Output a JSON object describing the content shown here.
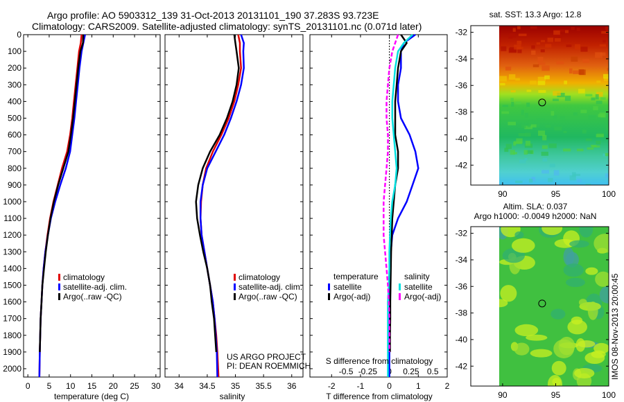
{
  "header": {
    "title_line1": "Argo profile: AO 5903312_139 31-Oct-2013 20131101_190 37.283S 93.723E",
    "title_line2": "Climatology: CARS2009. Satellite-adjusted climatology: synTS_20131101.nc (0.071d later)"
  },
  "colors": {
    "climatology": "#e00000",
    "satellite": "#0000ff",
    "argo": "#000000",
    "sal_satellite": "#00e0e0",
    "sal_argo": "#ff00ff"
  },
  "chart_data": [
    {
      "type": "line",
      "name": "temperature-profile",
      "xlabel": "temperature (deg C)",
      "xlim": [
        -1,
        31
      ],
      "ylim": [
        2050,
        0
      ],
      "xticks": [
        "0",
        "5",
        "10",
        "15",
        "20",
        "25",
        "30"
      ],
      "yticks": [
        "0",
        "100",
        "200",
        "300",
        "400",
        "500",
        "600",
        "700",
        "800",
        "900",
        "1000",
        "1100",
        "1200",
        "1300",
        "1400",
        "1500",
        "1600",
        "1700",
        "1800",
        "1900",
        "2000"
      ],
      "legend": [
        "climatology",
        "satellite-adj. clim.",
        "Argo(..raw -QC)"
      ],
      "series": [
        {
          "name": "climatology",
          "color": "#e00000",
          "x": [
            12.6,
            12.4,
            12.0,
            11.6,
            11.2,
            10.8,
            10.4,
            9.9,
            9.2,
            8.0,
            7.0,
            6.0,
            5.2,
            4.6,
            4.1,
            3.7,
            3.4,
            3.2,
            3.0,
            2.9,
            2.8,
            2.7
          ],
          "y": [
            0,
            50,
            100,
            200,
            300,
            400,
            500,
            600,
            700,
            800,
            900,
            1000,
            1100,
            1200,
            1300,
            1400,
            1500,
            1600,
            1700,
            1800,
            1900,
            2050
          ]
        },
        {
          "name": "satellite-adj. clim.",
          "color": "#0000ff",
          "x": [
            13.4,
            13.0,
            12.6,
            12.1,
            11.7,
            11.3,
            10.9,
            10.4,
            9.9,
            8.9,
            7.6,
            6.4,
            5.4,
            4.7,
            4.1,
            3.7,
            3.4,
            3.2,
            3.0,
            2.9,
            2.8,
            2.7
          ],
          "y": [
            0,
            50,
            100,
            200,
            300,
            400,
            500,
            600,
            700,
            800,
            900,
            1000,
            1100,
            1200,
            1300,
            1400,
            1500,
            1600,
            1700,
            1800,
            1900,
            2050
          ]
        },
        {
          "name": "Argo(..raw -QC)",
          "color": "#000000",
          "x": [
            13.0,
            12.9,
            12.3,
            11.8,
            11.4,
            11.0,
            10.6,
            10.1,
            9.5,
            8.3,
            7.1,
            6.1,
            5.3,
            4.7,
            4.2,
            3.8,
            3.4,
            3.2,
            3.0,
            2.9,
            2.8
          ],
          "y": [
            0,
            50,
            100,
            200,
            300,
            400,
            500,
            600,
            700,
            800,
            900,
            1000,
            1100,
            1200,
            1300,
            1400,
            1500,
            1600,
            1700,
            1800,
            1900
          ]
        }
      ]
    },
    {
      "type": "line",
      "name": "salinity-profile",
      "xlabel": "salinity",
      "xlim": [
        33.75,
        36.2
      ],
      "ylim": [
        2050,
        0
      ],
      "xticks": [
        "34",
        "34.5",
        "35",
        "35.5",
        "36"
      ],
      "legend": [
        "climatology",
        "satellite-adj. clim.",
        "Argo(..raw -QC)"
      ],
      "annotation": [
        "US ARGO PROJECT",
        "PI: DEAN ROEMMICH"
      ],
      "series": [
        {
          "name": "climatology",
          "color": "#e00000",
          "x": [
            35.05,
            35.08,
            35.08,
            35.1,
            35.05,
            34.98,
            34.88,
            34.75,
            34.6,
            34.48,
            34.42,
            34.39,
            34.38,
            34.4,
            34.45,
            34.5,
            34.55,
            34.6,
            34.63,
            34.66,
            34.68,
            34.7
          ],
          "y": [
            0,
            50,
            100,
            200,
            300,
            400,
            500,
            600,
            700,
            800,
            900,
            1000,
            1100,
            1200,
            1300,
            1400,
            1500,
            1600,
            1700,
            1800,
            1900,
            2050
          ]
        },
        {
          "name": "satellite-adj. clim.",
          "color": "#0000ff",
          "x": [
            35.1,
            35.15,
            35.14,
            35.15,
            35.1,
            35.02,
            34.92,
            34.8,
            34.65,
            34.5,
            34.42,
            34.38,
            34.38,
            34.4,
            34.45,
            34.5,
            34.55,
            34.6,
            34.63,
            34.65,
            34.67,
            34.68
          ],
          "y": [
            0,
            50,
            100,
            200,
            300,
            400,
            500,
            600,
            700,
            800,
            900,
            1000,
            1100,
            1200,
            1300,
            1400,
            1500,
            1600,
            1700,
            1800,
            1900,
            2050
          ]
        },
        {
          "name": "Argo(..raw -QC)",
          "color": "#000000",
          "x": [
            34.98,
            35.0,
            35.02,
            35.06,
            35.02,
            34.95,
            34.85,
            34.72,
            34.55,
            34.42,
            34.34,
            34.3,
            34.32,
            34.37,
            34.43,
            34.5,
            34.55,
            34.58,
            34.62,
            34.64,
            34.66
          ],
          "y": [
            0,
            50,
            100,
            200,
            300,
            400,
            500,
            600,
            700,
            800,
            900,
            1000,
            1100,
            1200,
            1300,
            1400,
            1500,
            1600,
            1700,
            1800,
            1900
          ]
        }
      ]
    },
    {
      "type": "line",
      "name": "difference-profile",
      "xlabel": "T difference from climatology",
      "xlabel_top": "S difference from climatology",
      "xlim": [
        -2.75,
        2.0
      ],
      "ylim": [
        2050,
        0
      ],
      "xticks": [
        "-2",
        "-1",
        "0",
        "1",
        "2"
      ],
      "xticks_s": [
        "-0.5",
        "-0.25",
        "0",
        "0.25",
        "0.5"
      ],
      "legend_temperature": {
        "heading": "temperature",
        "items": [
          "satellite",
          "Argo(-adj)"
        ]
      },
      "legend_salinity": {
        "heading": "salinity",
        "items": [
          "satellite",
          "Argo(-adj)"
        ]
      },
      "series": [
        {
          "name": "temperature satellite",
          "color": "#0000ff",
          "x": [
            0.9,
            0.5,
            0.4,
            0.4,
            0.3,
            0.3,
            0.4,
            0.7,
            0.9,
            1.0,
            0.8,
            0.6,
            0.3,
            0.1,
            0.05,
            0.03,
            0.02,
            0.02,
            0.01,
            0.01,
            0.0,
            0.0
          ],
          "y": [
            0,
            50,
            100,
            200,
            300,
            400,
            500,
            600,
            700,
            800,
            900,
            1000,
            1100,
            1200,
            1300,
            1400,
            1500,
            1600,
            1700,
            1800,
            1900,
            2050
          ]
        },
        {
          "name": "temperature Argo(-adj)",
          "color": "#000000",
          "x": [
            0.4,
            0.6,
            0.4,
            0.3,
            0.25,
            0.2,
            0.2,
            0.2,
            0.3,
            0.3,
            0.2,
            0.15,
            0.1,
            0.08,
            0.06,
            0.05,
            0.04,
            0.03,
            0.03,
            0.02,
            0.02
          ],
          "y": [
            0,
            50,
            100,
            200,
            300,
            400,
            500,
            600,
            700,
            800,
            900,
            1000,
            1100,
            1200,
            1300,
            1400,
            1500,
            1600,
            1700,
            1800,
            1900
          ]
        },
        {
          "name": "salinity satellite",
          "color": "#00e0e0",
          "x": [
            0.8,
            0.5,
            0.3,
            0.2,
            0.15,
            0.1,
            0.1,
            0.15,
            0.2,
            0.25,
            0.2,
            0.1,
            0.05,
            0.02,
            0.0,
            0.0,
            -0.02,
            -0.05,
            -0.05,
            -0.05,
            -0.05,
            -0.05
          ],
          "y": [
            0,
            50,
            100,
            200,
            300,
            400,
            500,
            600,
            700,
            800,
            900,
            1000,
            1100,
            1200,
            1300,
            1400,
            1500,
            1600,
            1700,
            1800,
            1900,
            2050
          ]
        },
        {
          "name": "salinity Argo(-adj)",
          "color": "#ff00ff",
          "x": [
            0.3,
            0.2,
            0.1,
            0.0,
            -0.05,
            -0.1,
            -0.1,
            -0.05,
            -0.05,
            -0.1,
            -0.15,
            -0.2,
            -0.2,
            -0.2,
            -0.15,
            -0.1,
            -0.05,
            -0.02,
            0.0,
            0.0,
            0.0
          ],
          "y": [
            0,
            50,
            100,
            200,
            300,
            400,
            500,
            600,
            700,
            800,
            900,
            1000,
            1100,
            1200,
            1300,
            1400,
            1500,
            1600,
            1700,
            1800,
            1900
          ]
        }
      ]
    },
    {
      "type": "heatmap",
      "name": "sst-map",
      "title": "sat. SST: 13.3 Argo: 12.8",
      "xlim": [
        87,
        100
      ],
      "ylim": [
        -43.5,
        -31.5
      ],
      "xticks": [
        "90",
        "95",
        "100"
      ],
      "yticks": [
        "-32",
        "-34",
        "-36",
        "-38",
        "-40",
        "-42"
      ],
      "marker": {
        "lon": 93.723,
        "lat": -37.283
      }
    },
    {
      "type": "heatmap",
      "name": "sla-map",
      "title_line1": "Altim. SLA: 0.037",
      "title_line2": "Argo h1000: -0.0049 h2000: NaN",
      "xlim": [
        87,
        100
      ],
      "ylim": [
        -43.5,
        -31.5
      ],
      "xticks": [
        "90",
        "95",
        "100"
      ],
      "yticks": [
        "-32",
        "-34",
        "-36",
        "-38",
        "-40",
        "-42"
      ],
      "marker": {
        "lon": 93.723,
        "lat": -37.283
      }
    }
  ],
  "side_label": "IMOS 08-Nov-2013 20:00:45"
}
